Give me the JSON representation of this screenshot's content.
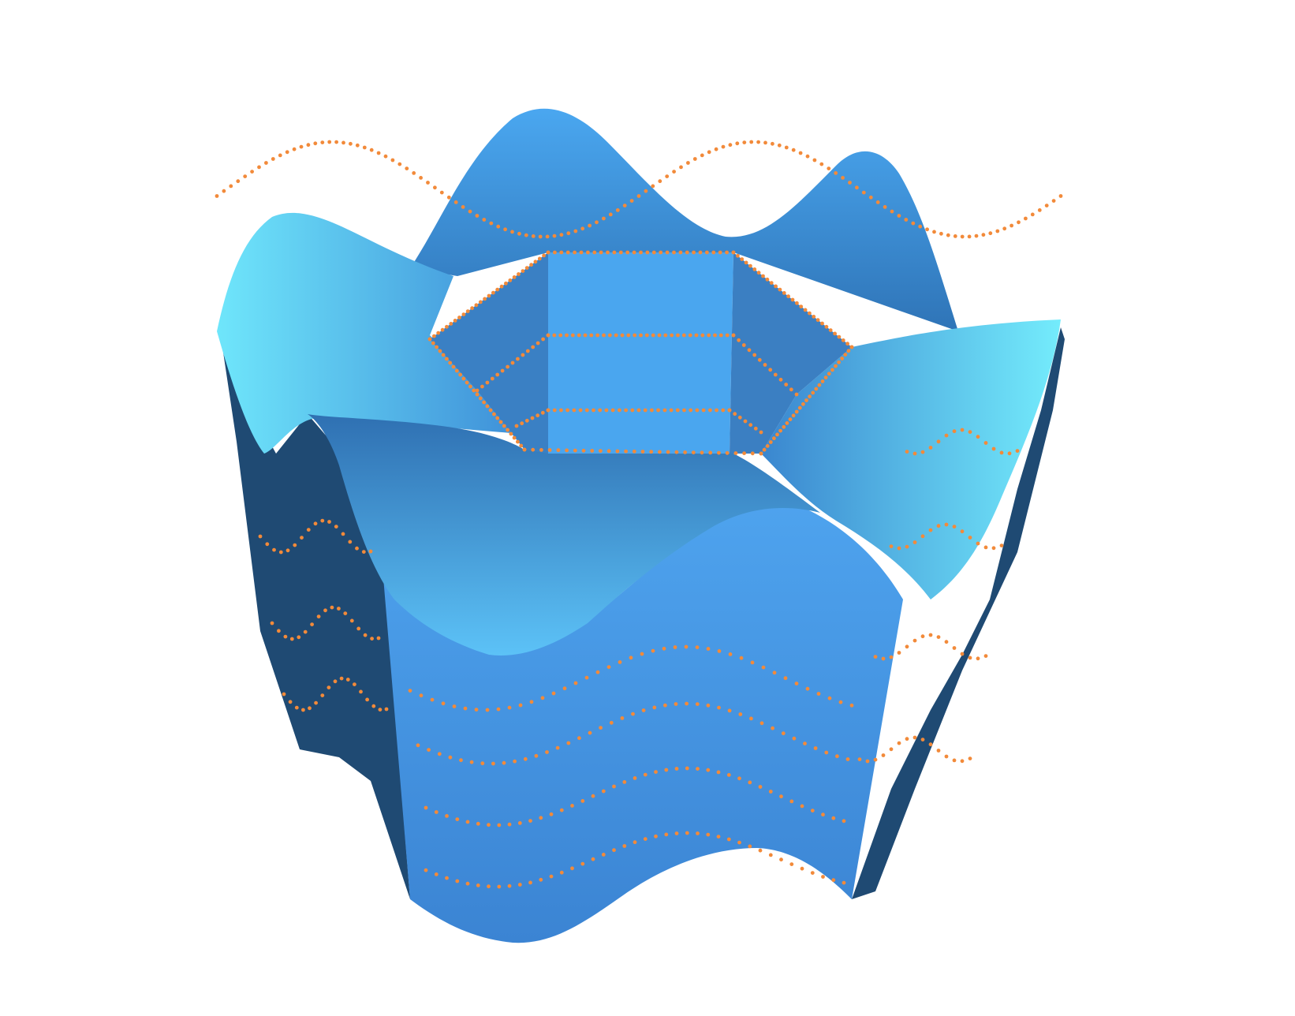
{
  "scene": {
    "background": "#ffffff",
    "surface_colors": {
      "front": "#4a9be8",
      "front_dark": "#3d82cf",
      "side": "#1f4a73",
      "top_light": "#6fe3fb",
      "top_mid": "#4aa6ef",
      "top_dark": "#2e6fb0",
      "hole_wall": "#4aa6ef",
      "hole_side": "#3a80c4"
    },
    "vertex_marker_color": "#f28a3a"
  }
}
